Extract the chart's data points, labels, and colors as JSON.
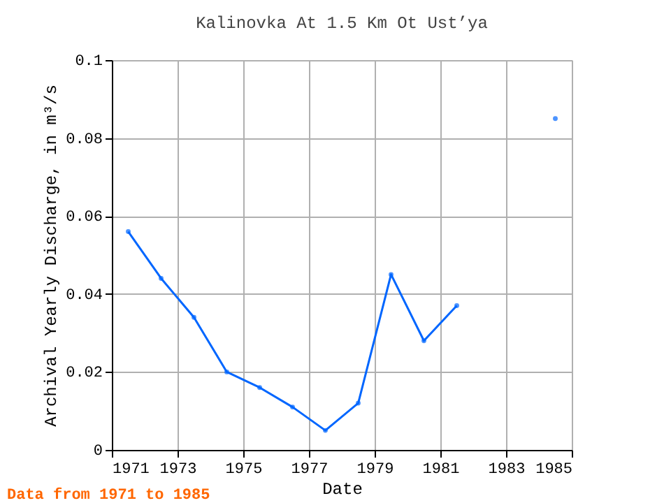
{
  "chart_data": {
    "type": "line",
    "title": "Kalinovka At 1.5 Km Ot Ust’ya",
    "xlabel": "Date",
    "ylabel": "Archival Yearly Discharge, in m³/s",
    "x": [
      1971.5,
      1972.5,
      1973.5,
      1974.5,
      1975.5,
      1976.5,
      1977.5,
      1978.5,
      1979.5,
      1980.5,
      1981.5,
      1982.5,
      1983.5,
      1984.5
    ],
    "series": [
      {
        "color": "#0066ff",
        "values": [
          0.056,
          0.044,
          0.034,
          0.02,
          0.016,
          0.011,
          0.005,
          0.012,
          0.045,
          0.028,
          0.037,
          null,
          null,
          0.085
        ]
      }
    ],
    "xlim": [
      1971,
      1985
    ],
    "xticks": [
      1971,
      1973,
      1975,
      1977,
      1979,
      1981,
      1983,
      1985
    ],
    "ylim": [
      0,
      0.1
    ],
    "yticks": [
      0,
      0.02,
      0.04,
      0.06,
      0.08,
      0.1
    ],
    "grid": true,
    "marker": "circle",
    "line_style": "solid",
    "annotations": [
      "Data from 1971 to 1985"
    ]
  }
}
